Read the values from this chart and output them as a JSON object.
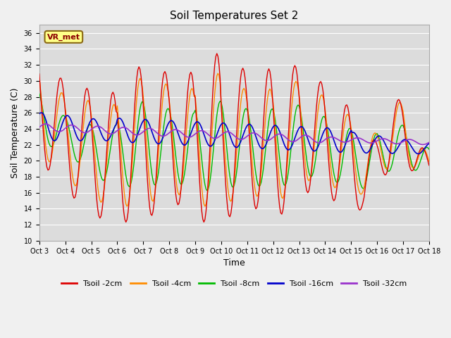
{
  "title": "Soil Temperatures Set 2",
  "xlabel": "Time",
  "ylabel": "Soil Temperature (C)",
  "ylim": [
    10,
    37
  ],
  "yticks": [
    10,
    12,
    14,
    16,
    18,
    20,
    22,
    24,
    26,
    28,
    30,
    32,
    34,
    36
  ],
  "xtick_labels": [
    "Oct 3",
    "Oct 4",
    "Oct 5",
    "Oct 6",
    "Oct 7",
    "Oct 8",
    "Oct 9",
    "Oct 10",
    "Oct 11",
    "Oct 12",
    "Oct 13",
    "Oct 14",
    "Oct 15",
    "Oct 16",
    "Oct 17",
    "Oct 18"
  ],
  "series_colors": [
    "#dd0000",
    "#ff8c00",
    "#00bb00",
    "#0000cc",
    "#9932cc"
  ],
  "series_names": [
    "Tsoil -2cm",
    "Tsoil -4cm",
    "Tsoil -8cm",
    "Tsoil -16cm",
    "Tsoil -32cm"
  ],
  "annotation_text": "VR_met",
  "background_color": "#dcdcdc",
  "grid_color": "#ffffff",
  "fig_bg": "#f0f0f0",
  "title_fontsize": 11,
  "tick_fontsize": 7,
  "legend_fontsize": 8,
  "axis_label_fontsize": 9
}
